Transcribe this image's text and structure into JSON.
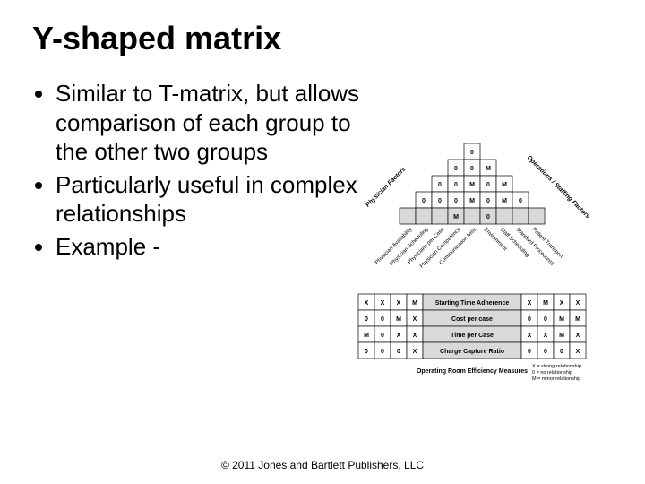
{
  "title": "Y-shaped matrix",
  "bullets": [
    "Similar to T-matrix, but allows comparison of each group to the other two groups",
    "Particularly useful in complex relationships",
    "Example -"
  ],
  "copyright": "© 2011 Jones and Bartlett Publishers, LLC",
  "diagram": {
    "colors": {
      "line": "#000000",
      "lightFill": "#d9d9d9",
      "whiteFill": "#ffffff",
      "bg": "#ffffff"
    },
    "diamond": {
      "size": 5,
      "cellSize": 18,
      "leftLabels": [
        "Physician Availability",
        "Physician Scheduling",
        "Physicians per Case",
        "Physician Competency",
        "Communication Miss"
      ],
      "rightLabels": [
        "Environment",
        "Staff Scheduling",
        "Standard Procedures",
        "Patient Transport"
      ],
      "leftAxisTitle": "Physician Factors",
      "rightAxisTitle": "Operations / Staffing Factors",
      "grid": [
        [
          null,
          null,
          null,
          null,
          "0",
          null,
          null,
          null,
          null
        ],
        [
          null,
          null,
          null,
          "0",
          "0",
          "M",
          null,
          null,
          null
        ],
        [
          null,
          null,
          "0",
          "0",
          "M",
          "0",
          "M",
          null,
          null
        ],
        [
          null,
          "0",
          "0",
          "0",
          "M",
          "0",
          "M",
          "0",
          null
        ],
        [
          "",
          "",
          "",
          "M",
          "",
          "0",
          "",
          "",
          ""
        ]
      ],
      "blankShaded": [
        [
          4,
          0
        ],
        [
          4,
          1
        ],
        [
          4,
          2
        ],
        [
          4,
          4
        ],
        [
          4,
          6
        ],
        [
          4,
          7
        ],
        [
          4,
          8
        ]
      ]
    },
    "table": {
      "rowLabels": [
        "Starting Time Adherence",
        "Cost per case",
        "Time per Case",
        "Charge Capture Ratio"
      ],
      "leftCols": 4,
      "rightCols": 4,
      "left": [
        [
          "X",
          "X",
          "X",
          "M"
        ],
        [
          "0",
          "0",
          "M",
          "X"
        ],
        [
          "M",
          "0",
          "X",
          "X"
        ],
        [
          "0",
          "0",
          "0",
          "X"
        ]
      ],
      "right": [
        [
          "X",
          "M",
          "X",
          "X"
        ],
        [
          "0",
          "0",
          "M",
          "M"
        ],
        [
          "X",
          "X",
          "M",
          "X"
        ],
        [
          "0",
          "0",
          "0",
          "X"
        ]
      ],
      "bottomTitle": "Operating Room Efficiency Measures"
    },
    "legend": [
      "X = strong relationship",
      "0 = no relationship",
      "M = minor relationship"
    ]
  }
}
